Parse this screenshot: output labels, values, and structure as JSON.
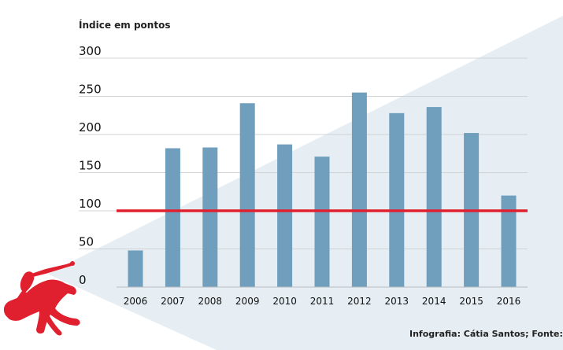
{
  "chart_data": {
    "type": "bar",
    "ylabel": "Índice em pontos",
    "xlabel": "",
    "categories": [
      "2006",
      "2007",
      "2008",
      "2009",
      "2010",
      "2011",
      "2012",
      "2013",
      "2014",
      "2015",
      "2016"
    ],
    "values": [
      48,
      182,
      183,
      241,
      187,
      171,
      255,
      228,
      236,
      202,
      120
    ],
    "ylim": [
      0,
      300
    ],
    "yticks": [
      0,
      50,
      100,
      150,
      200,
      250,
      300
    ],
    "reference_line": 100,
    "grid": true,
    "colors": {
      "bar": "#6f9fbd",
      "reference": "#e0202e",
      "grid": "#d0d3d6",
      "background_triangle": "#e6eef3"
    }
  },
  "footer": {
    "credit": "Infografia: Cátia Santos; Fonte: Anacom"
  },
  "icons": {
    "logo": "horse-rider-logo"
  }
}
